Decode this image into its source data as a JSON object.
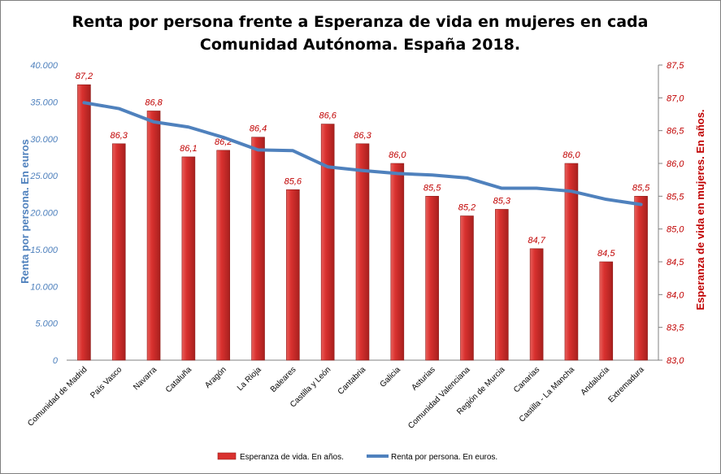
{
  "chart_data": {
    "type": "bar",
    "title_line1": "Renta por persona frente a Esperanza de vida en mujeres en cada",
    "title_line2": "Comunidad Autónoma. España 2018.",
    "ylabel_left": "Renta por persona. En euros",
    "ylabel_right": "Esperanza de vida en mujeres. En años.",
    "left_axis": {
      "min": 0,
      "max": 40000,
      "step": 5000,
      "ticks": [
        "0",
        "5.000",
        "10.000",
        "15.000",
        "20.000",
        "25.000",
        "30.000",
        "35.000",
        "40.000"
      ]
    },
    "right_axis": {
      "min": 83.0,
      "max": 87.5,
      "step": 0.5,
      "ticks": [
        "83,0",
        "83,5",
        "84,0",
        "84,5",
        "85,0",
        "85,5",
        "86,0",
        "86,5",
        "87,0",
        "87,5"
      ]
    },
    "categories": [
      "Comunidad de Madrid",
      "País Vasco",
      "Navarra",
      "Cataluña",
      "Aragón",
      "La Rioja",
      "Baleares",
      "Castilla y León",
      "Cantabria",
      "Galicia",
      "Asturias",
      "Comunidad Valenciana",
      "Región de Murcia",
      "Canarias",
      "Castilla - La Mancha",
      "Andalucía",
      "Extremadura"
    ],
    "series": [
      {
        "name": "Esperanza de vida. En años.",
        "type": "bar",
        "axis": "right",
        "color": "#d9312f",
        "values": [
          87.2,
          86.3,
          86.8,
          86.1,
          86.2,
          86.4,
          85.6,
          86.6,
          86.3,
          86.0,
          85.5,
          85.2,
          85.3,
          84.7,
          86.0,
          84.5,
          85.5
        ],
        "labels": [
          "87,2",
          "86,3",
          "86,8",
          "86,1",
          "86,2",
          "86,4",
          "85,6",
          "86,6",
          "86,3",
          "86,0",
          "85,5",
          "85,2",
          "85,3",
          "84,7",
          "86,0",
          "84,5",
          "85,5"
        ]
      },
      {
        "name": "Renta por persona. En euros.",
        "type": "line",
        "axis": "left",
        "color": "#4f81bd",
        "values": [
          34900,
          34100,
          32300,
          31600,
          30200,
          28500,
          28400,
          26200,
          25700,
          25300,
          25100,
          24700,
          23300,
          23300,
          22900,
          21800,
          21100
        ]
      }
    ],
    "legend_position": "bottom",
    "grid": false
  }
}
